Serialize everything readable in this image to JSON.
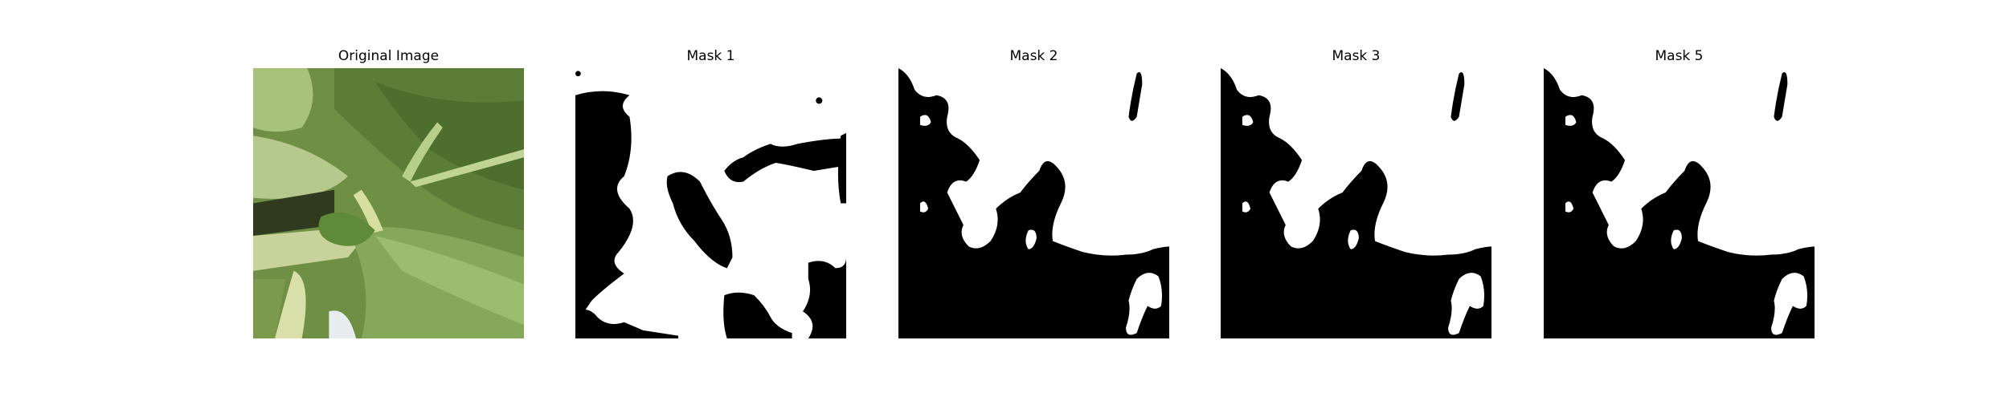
{
  "panels": [
    {
      "title": "Original Image",
      "kind": "photo",
      "subject": "green-leaves"
    },
    {
      "title": "Mask 1",
      "kind": "mask"
    },
    {
      "title": "Mask 2",
      "kind": "mask"
    },
    {
      "title": "Mask 3",
      "kind": "mask"
    },
    {
      "title": "Mask 5",
      "kind": "mask"
    }
  ],
  "colors": {
    "mask_fg": "#ffffff",
    "mask_bg": "#000000",
    "background": "#ffffff"
  }
}
